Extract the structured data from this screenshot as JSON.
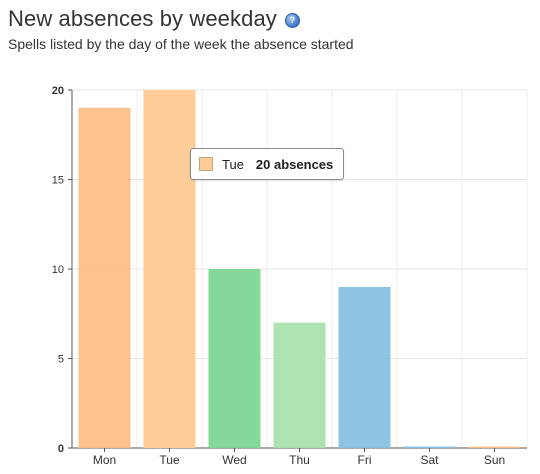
{
  "header": {
    "title": "New absences by weekday",
    "subtitle": "Spells listed by the day of the week the absence started",
    "help_icon": "help-icon"
  },
  "tooltip": {
    "category": "Tue",
    "value_text": "20 absences",
    "color": "#fecc96"
  },
  "chart_data": {
    "type": "bar",
    "categories": [
      "Mon",
      "Tue",
      "Wed",
      "Thu",
      "Fri",
      "Sat",
      "Sun"
    ],
    "values": [
      19,
      20,
      10,
      7,
      9,
      0,
      0
    ],
    "colors": [
      "#fdbe87",
      "#fecc96",
      "#7dd693",
      "#a9e2ae",
      "#88c1e1",
      "#88c1e1",
      "#fdbe87"
    ],
    "yticks": [
      0,
      5,
      10,
      15,
      20
    ],
    "ylim": [
      0,
      20
    ],
    "grid": true,
    "highlighted": "Tue"
  }
}
